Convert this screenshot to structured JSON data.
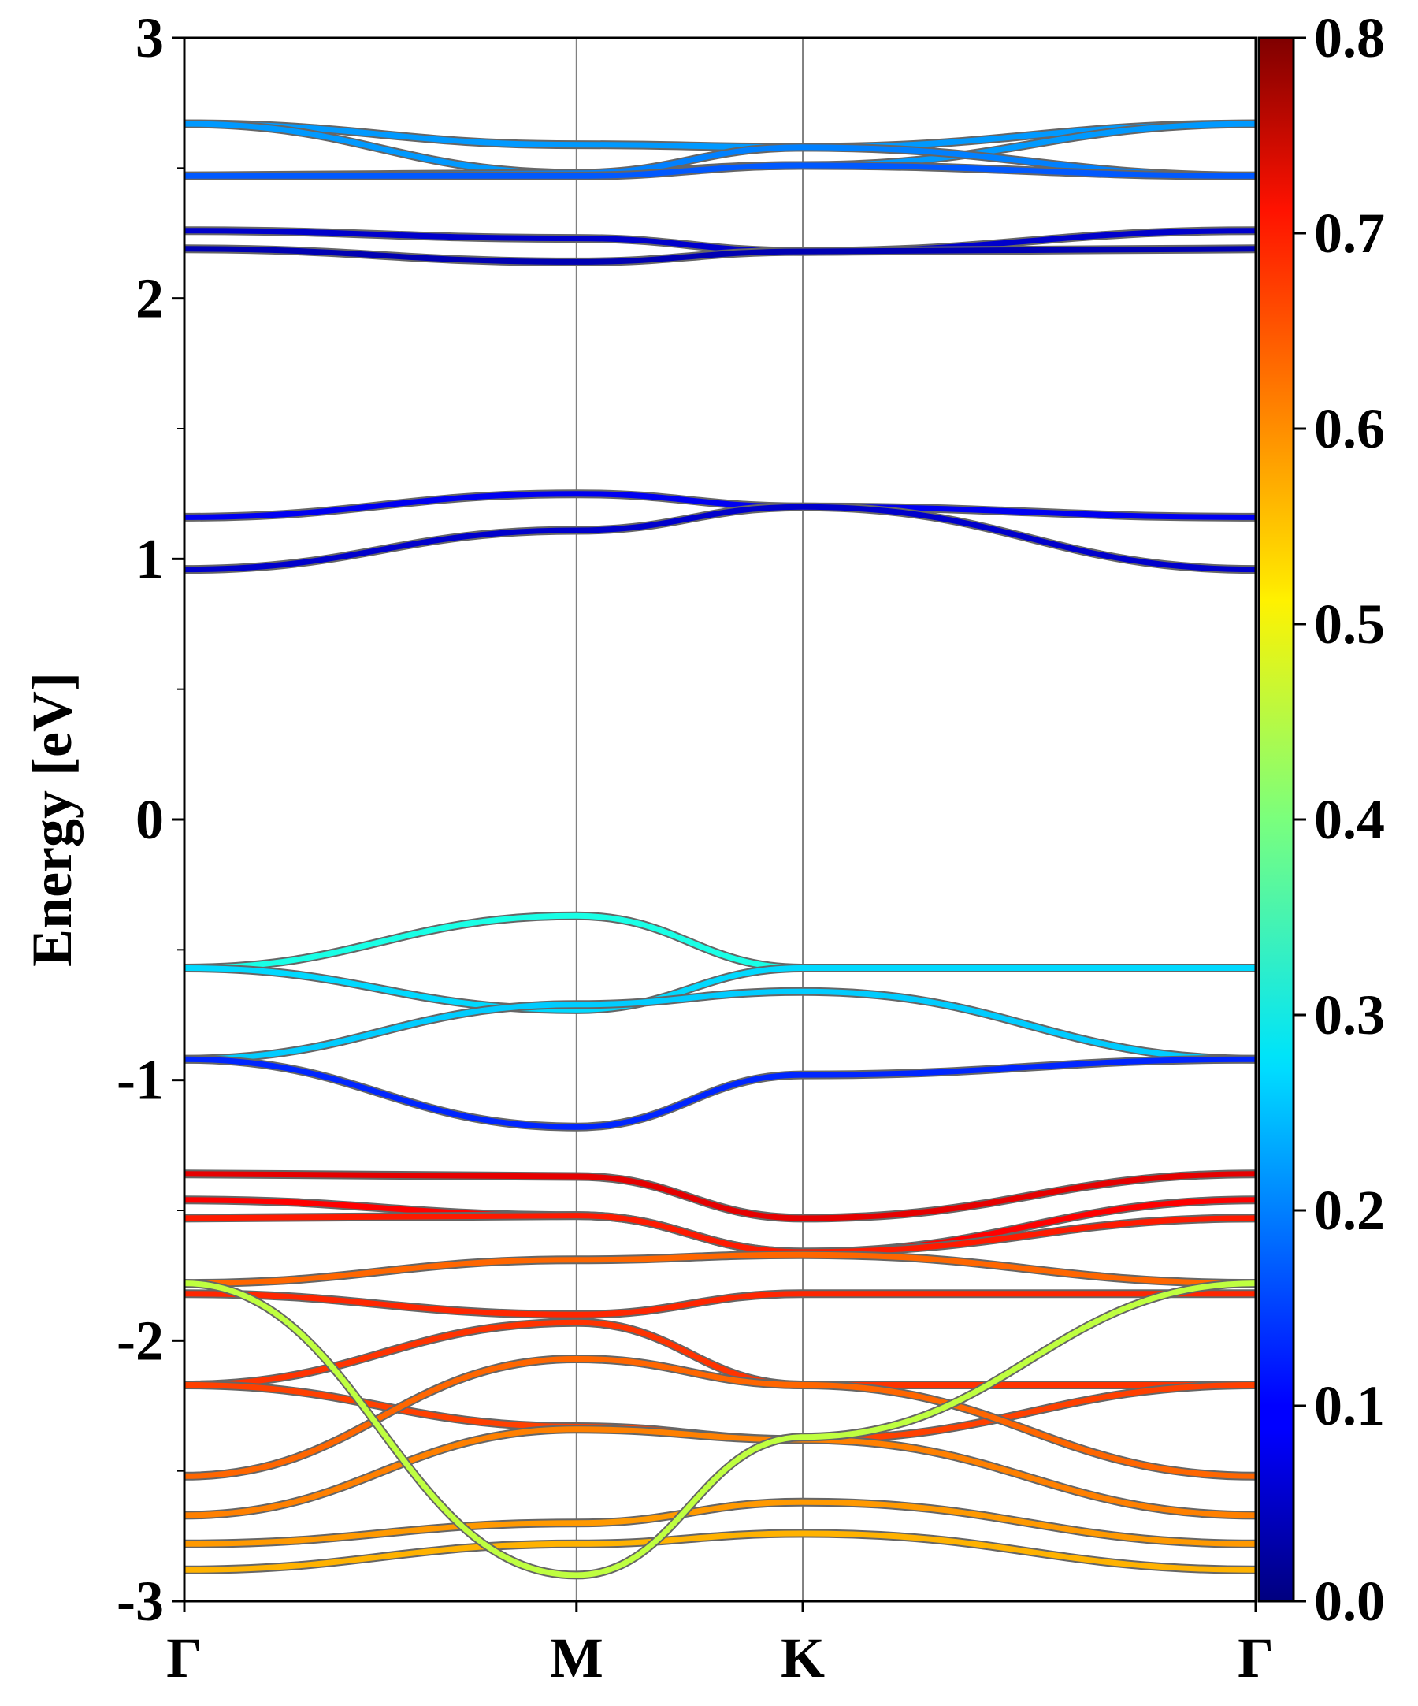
{
  "chart_data": {
    "type": "line",
    "title": "",
    "xlabel": "",
    "ylabel": "Energy [eV]",
    "ylim": [
      -3,
      3
    ],
    "y_ticks": [
      "-3",
      "-2",
      "-1",
      "0",
      "1",
      "2",
      "3"
    ],
    "high_symmetry_points": [
      {
        "label": "Γ",
        "k": 0.0
      },
      {
        "label": "M",
        "k": 1.0
      },
      {
        "label": "K",
        "k": 1.577
      },
      {
        "label": "Γ",
        "k": 2.732
      }
    ],
    "colorbar": {
      "range": [
        0.0,
        0.8
      ],
      "ticks": [
        "0.0",
        "0.1",
        "0.2",
        "0.3",
        "0.4",
        "0.5",
        "0.6",
        "0.7",
        "0.8"
      ],
      "colormap": "jet"
    },
    "series": [
      {
        "values": [
          2.67,
          2.59,
          2.58,
          2.67
        ],
        "weight": 0.22
      },
      {
        "values": [
          2.67,
          2.48,
          2.51,
          2.67
        ],
        "weight": 0.22
      },
      {
        "values": [
          2.47,
          2.48,
          2.58,
          2.47
        ],
        "weight": 0.2
      },
      {
        "values": [
          2.47,
          2.47,
          2.51,
          2.47
        ],
        "weight": 0.17
      },
      {
        "values": [
          2.26,
          2.23,
          2.18,
          2.26
        ],
        "weight": 0.06
      },
      {
        "values": [
          2.19,
          2.14,
          2.18,
          2.19
        ],
        "weight": 0.04
      },
      {
        "values": [
          1.16,
          1.25,
          1.2,
          1.16
        ],
        "weight": 0.09
      },
      {
        "values": [
          0.96,
          1.11,
          1.2,
          0.96
        ],
        "weight": 0.06
      },
      {
        "values": [
          -0.57,
          -0.37,
          -0.57,
          -0.57
        ],
        "weight": 0.32
      },
      {
        "values": [
          -0.57,
          -0.73,
          -0.57,
          -0.57
        ],
        "weight": 0.27
      },
      {
        "values": [
          -0.92,
          -0.71,
          -0.66,
          -0.92
        ],
        "weight": 0.26
      },
      {
        "values": [
          -0.92,
          -1.18,
          -0.98,
          -0.92
        ],
        "weight": 0.13
      },
      {
        "values": [
          -1.36,
          -1.37,
          -1.53,
          -1.36
        ],
        "weight": 0.72
      },
      {
        "values": [
          -1.46,
          -1.52,
          -1.66,
          -1.46
        ],
        "weight": 0.7
      },
      {
        "values": [
          -1.53,
          -1.52,
          -1.66,
          -1.53
        ],
        "weight": 0.68
      },
      {
        "values": [
          -1.78,
          -1.69,
          -1.67,
          -1.78
        ],
        "weight": 0.62
      },
      {
        "values": [
          -1.82,
          -1.9,
          -1.82,
          -1.82
        ],
        "weight": 0.67
      },
      {
        "values": [
          -2.17,
          -1.93,
          -2.17,
          -2.17
        ],
        "weight": 0.66
      },
      {
        "values": [
          -2.17,
          -2.33,
          -2.38,
          -2.17
        ],
        "weight": 0.65
      },
      {
        "values": [
          -2.52,
          -2.07,
          -2.17,
          -2.52
        ],
        "weight": 0.62
      },
      {
        "values": [
          -2.67,
          -2.34,
          -2.38,
          -2.67
        ],
        "weight": 0.6
      },
      {
        "values": [
          -2.78,
          -2.7,
          -2.62,
          -2.78
        ],
        "weight": 0.58
      },
      {
        "values": [
          -2.88,
          -2.78,
          -2.74,
          -2.88
        ],
        "weight": 0.56
      },
      {
        "values": [
          -1.78,
          -2.9,
          -2.37,
          -1.78
        ],
        "weight": 0.45
      }
    ]
  }
}
